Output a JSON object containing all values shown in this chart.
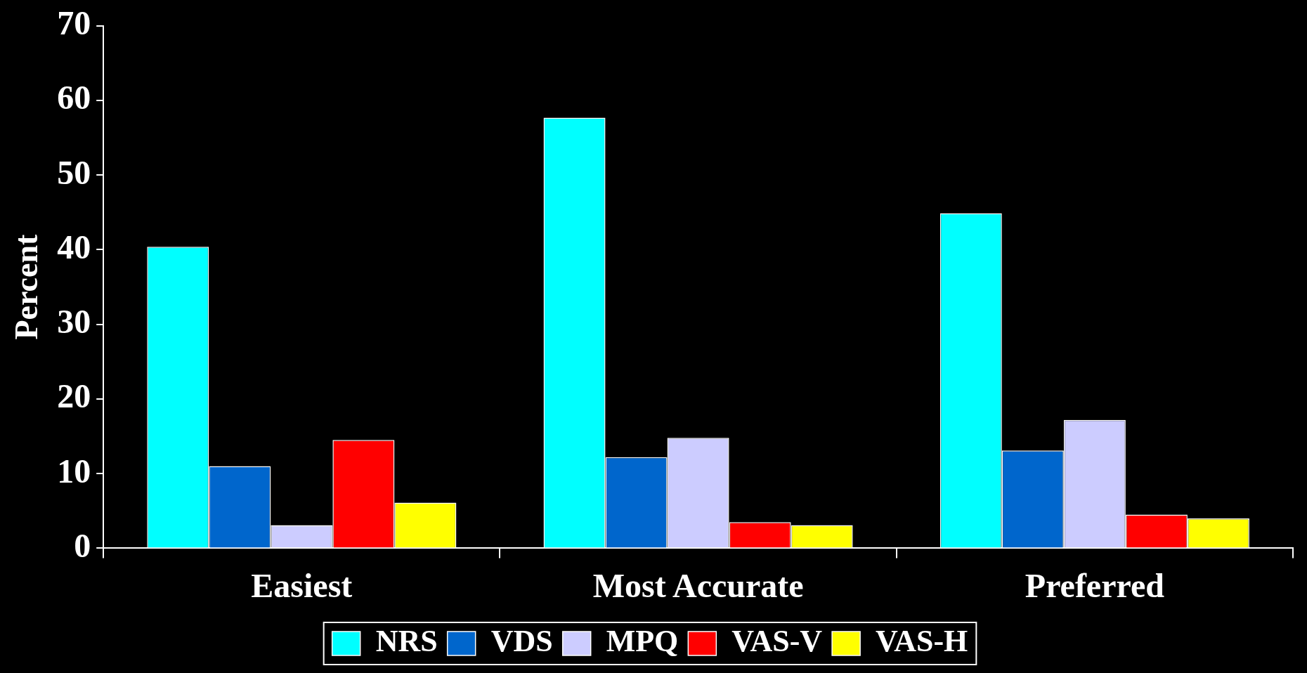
{
  "chart_data": {
    "type": "bar",
    "ylabel": "Percent",
    "categories": [
      "Easiest",
      "Most Accurate",
      "Preferred"
    ],
    "series": [
      {
        "name": "NRS",
        "color": "#00ffff",
        "values": [
          40.4,
          57.7,
          44.9
        ]
      },
      {
        "name": "VDS",
        "color": "#0066cc",
        "values": [
          11.0,
          12.2,
          13.1
        ]
      },
      {
        "name": "MPQ",
        "color": "#ccccff",
        "values": [
          3.1,
          14.8,
          17.2
        ]
      },
      {
        "name": "VAS-V",
        "color": "#ff0000",
        "values": [
          14.5,
          3.5,
          4.5
        ]
      },
      {
        "name": "VAS-H",
        "color": "#ffff00",
        "values": [
          6.1,
          3.1,
          4.0
        ]
      }
    ],
    "ylim": [
      0,
      70
    ],
    "yticks": [
      0,
      10,
      20,
      30,
      40,
      50,
      60,
      70
    ],
    "grid": false,
    "legend": "bottom"
  }
}
